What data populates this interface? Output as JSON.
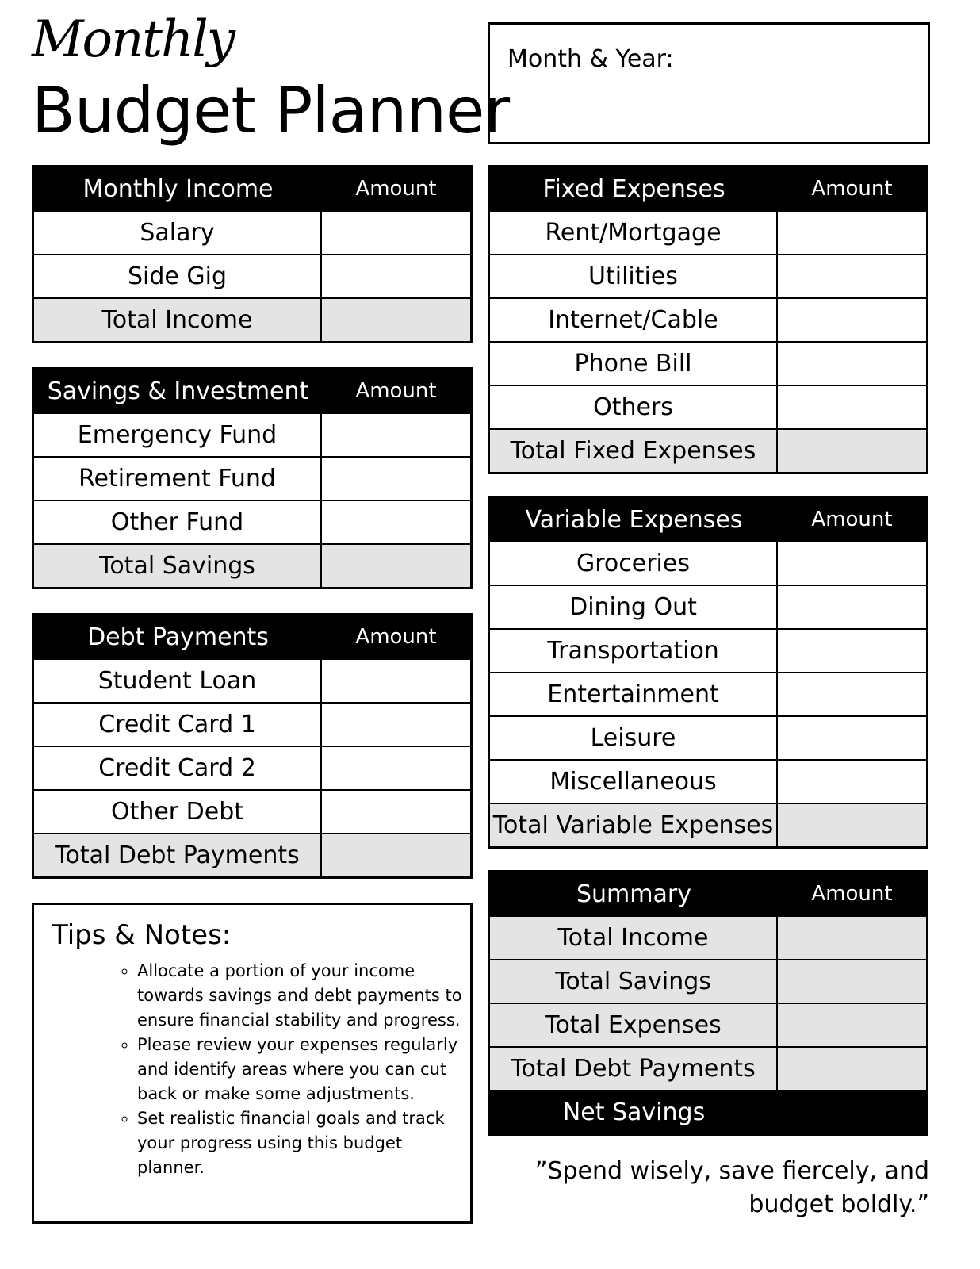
{
  "header": {
    "title_script": "Monthly",
    "title_main": "Budget Planner",
    "month_year_label": "Month & Year:"
  },
  "tables": [
    {
      "id": "monthly-income",
      "title": "Monthly Income",
      "amount_label": "Amount",
      "rows": [
        {
          "label": "Salary"
        },
        {
          "label": "Side Gig"
        },
        {
          "label": "Total Income",
          "type": "total"
        }
      ]
    },
    {
      "id": "savings",
      "title": "Savings & Investment",
      "amount_label": "Amount",
      "rows": [
        {
          "label": "Emergency Fund"
        },
        {
          "label": "Retirement Fund"
        },
        {
          "label": "Other Fund"
        },
        {
          "label": "Total Savings",
          "type": "total"
        }
      ]
    },
    {
      "id": "debt",
      "title": "Debt Payments",
      "amount_label": "Amount",
      "rows": [
        {
          "label": "Student Loan"
        },
        {
          "label": "Credit Card 1"
        },
        {
          "label": "Credit Card 2"
        },
        {
          "label": "Other Debt"
        },
        {
          "label": "Total Debt Payments",
          "type": "total"
        }
      ]
    },
    {
      "id": "fixed",
      "title": "Fixed Expenses",
      "amount_label": "Amount",
      "rows": [
        {
          "label": "Rent/Mortgage"
        },
        {
          "label": "Utilities"
        },
        {
          "label": "Internet/Cable"
        },
        {
          "label": "Phone Bill"
        },
        {
          "label": "Others"
        },
        {
          "label": "Total Fixed Expenses",
          "type": "total"
        }
      ]
    },
    {
      "id": "variable",
      "title": "Variable Expenses",
      "amount_label": "Amount",
      "rows": [
        {
          "label": "Groceries"
        },
        {
          "label": "Dining Out"
        },
        {
          "label": "Transportation"
        },
        {
          "label": "Entertainment"
        },
        {
          "label": "Leisure"
        },
        {
          "label": "Miscellaneous"
        },
        {
          "label": "Total Variable Expenses",
          "type": "total"
        }
      ]
    },
    {
      "id": "summary",
      "title": "Summary",
      "amount_label": "Amount",
      "rows": [
        {
          "label": "Total Income",
          "type": "total"
        },
        {
          "label": "Total Savings",
          "type": "total"
        },
        {
          "label": "Total Expenses",
          "type": "total"
        },
        {
          "label": "Total Debt Payments",
          "type": "total"
        },
        {
          "label": "Net Savings",
          "type": "net"
        }
      ]
    }
  ],
  "tips": {
    "title": "Tips & Notes:",
    "items": [
      "Allocate a portion of your income towards savings and debt payments to ensure financial stability and progress.",
      "Please review your expenses regularly and identify areas where you can cut back or make some adjustments.",
      "Set realistic financial goals and track your progress using this budget planner."
    ]
  },
  "quote": "”Spend wisely, save fiercely, and budget boldly.”"
}
